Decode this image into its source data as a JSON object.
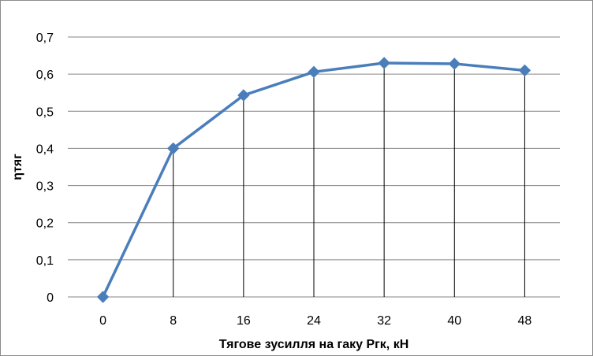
{
  "chart_data": {
    "type": "line",
    "title": "",
    "xlabel": "Тягове зусилля на гаку Ргк, кН",
    "ylabel": "ηтяг",
    "x": [
      0,
      8,
      16,
      24,
      32,
      40,
      48
    ],
    "x_tick_labels": [
      "0",
      "8",
      "16",
      "24",
      "32",
      "40",
      "48"
    ],
    "y_tick_labels": [
      "0",
      "0,1",
      "0,2",
      "0,3",
      "0,4",
      "0,5",
      "0,6",
      "0,7"
    ],
    "ylim": [
      0,
      0.7
    ],
    "grid": "horizontal major gridlines",
    "drop_lines": true,
    "legend": "none",
    "series": [
      {
        "values": [
          0,
          0.4,
          0.543,
          0.606,
          0.63,
          0.628,
          0.61
        ],
        "color": "#4A7EBB",
        "marker": "diamond"
      }
    ],
    "colors": {
      "line": "#4A7EBB",
      "grid": "#868686",
      "drop_line": "#000000"
    }
  }
}
